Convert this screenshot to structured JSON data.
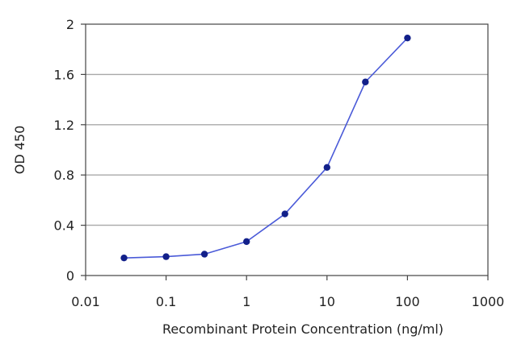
{
  "chart_data": {
    "type": "line",
    "title": "",
    "xlabel": "Recombinant Protein Concentration (ng/ml)",
    "ylabel": "OD 450",
    "xscale": "log",
    "xlim": [
      0.01,
      1000
    ],
    "ylim": [
      0,
      2
    ],
    "x_ticks": [
      0.01,
      0.1,
      1,
      10,
      100,
      1000
    ],
    "x_tick_labels": [
      "0.01",
      "0.1",
      "1",
      "10",
      "100",
      "1000"
    ],
    "y_ticks": [
      0,
      0.4,
      0.8,
      1.2,
      1.6,
      2
    ],
    "y_tick_labels": [
      "0",
      "0.4",
      "0.8",
      "1.2",
      "1.6",
      "2"
    ],
    "grid": "horizontal",
    "legend": "none",
    "series": [
      {
        "x": [
          0.03,
          0.1,
          0.3,
          1,
          3,
          10,
          30,
          100
        ],
        "y": [
          0.14,
          0.15,
          0.17,
          0.27,
          0.49,
          0.86,
          1.54,
          1.89
        ]
      }
    ],
    "colors": {
      "line": "#4a5ad8",
      "marker": "#12208a",
      "grid": "#a8a8a8",
      "axis": "#444444"
    }
  }
}
